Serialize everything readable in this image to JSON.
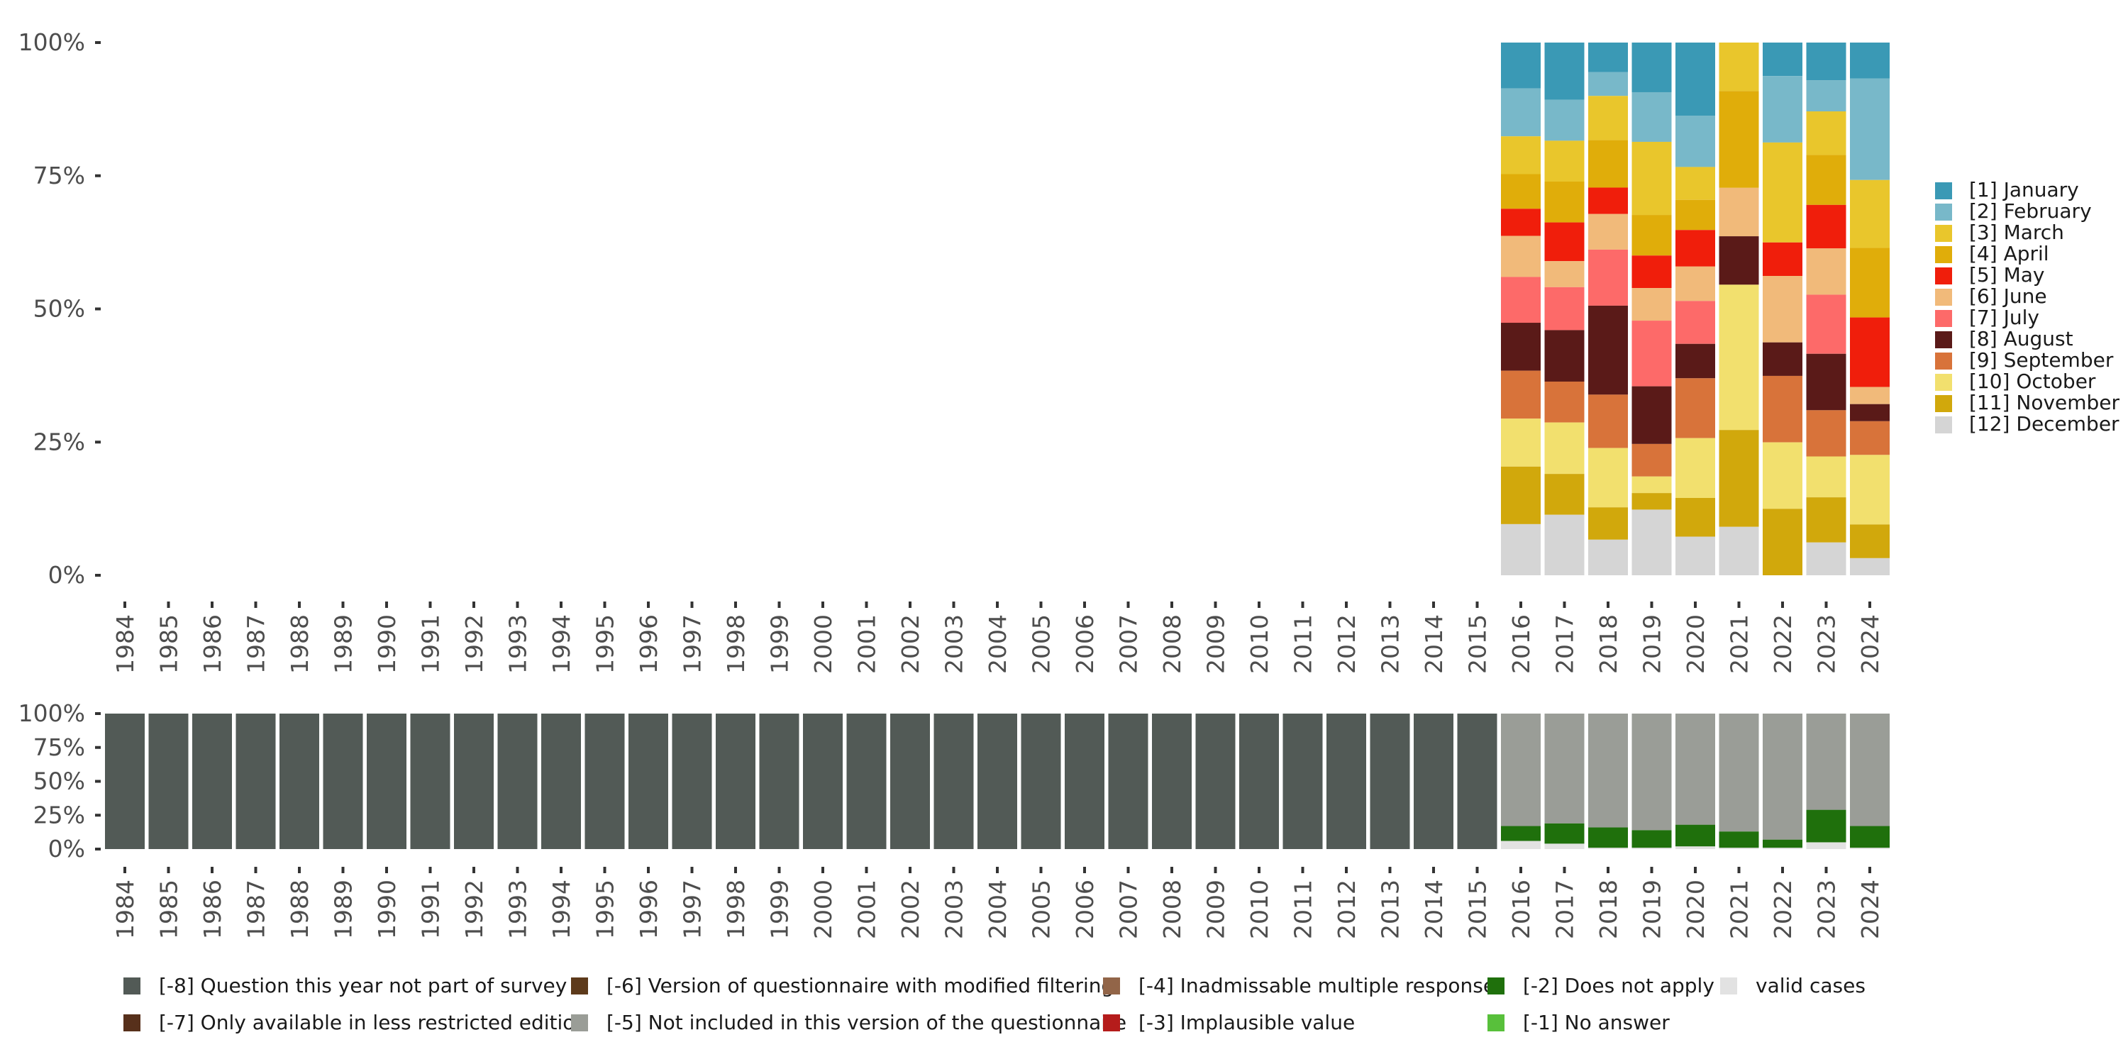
{
  "colors": {
    "months": [
      "#3a99b5",
      "#78b8c9",
      "#e9c62c",
      "#e0ad0a",
      "#f01e0b",
      "#f1ba7a",
      "#fd6a69",
      "#5a1a18",
      "#d8733a",
      "#f2e06e",
      "#d1a80c",
      "#d5d5d5"
    ],
    "missing": {
      "q_not_part": "#525a56",
      "less_restricted": "#57301b",
      "modified_filtering": "#5d3a1b",
      "not_included": "#9a9d97",
      "inadmissable": "#926548",
      "implausible": "#b51c1b",
      "not_apply": "#1f700c",
      "no_answer": "#58c03b",
      "valid": "#e2e2e2"
    }
  },
  "chart_data": [
    {
      "type": "bar",
      "stacked": true,
      "years": [
        "1984",
        "1985",
        "1986",
        "1987",
        "1988",
        "1989",
        "1990",
        "1991",
        "1992",
        "1993",
        "1994",
        "1995",
        "1996",
        "1997",
        "1998",
        "1999",
        "2000",
        "2001",
        "2002",
        "2003",
        "2004",
        "2005",
        "2006",
        "2007",
        "2008",
        "2009",
        "2010",
        "2011",
        "2012",
        "2013",
        "2014",
        "2015",
        "2016",
        "2017",
        "2018",
        "2019",
        "2020",
        "2021",
        "2022",
        "2023",
        "2024"
      ],
      "ylim": [
        0,
        100
      ],
      "yticks": [
        "0%",
        "25%",
        "50%",
        "75%",
        "100%"
      ],
      "legend_position": "right",
      "series": [
        {
          "name": "[1] January",
          "values": {
            "2016": 8.6,
            "2017": 10.8,
            "2018": 5.5,
            "2019": 9.3,
            "2020": 13.8,
            "2021": 0,
            "2022": 6.3,
            "2023": 7.0,
            "2024": 6.7
          }
        },
        {
          "name": "[2] February",
          "values": {
            "2016": 9.0,
            "2017": 7.7,
            "2018": 4.4,
            "2019": 9.3,
            "2020": 9.7,
            "2021": 0,
            "2022": 12.5,
            "2023": 5.8,
            "2024": 19.0
          }
        },
        {
          "name": "[3] March",
          "values": {
            "2016": 7.1,
            "2017": 7.7,
            "2018": 8.2,
            "2019": 13.7,
            "2020": 6.2,
            "2021": 9.1,
            "2022": 18.8,
            "2023": 8.1,
            "2024": 12.7
          }
        },
        {
          "name": "[4] April",
          "values": {
            "2016": 6.5,
            "2017": 7.7,
            "2018": 8.8,
            "2019": 7.6,
            "2020": 5.7,
            "2021": 18.2,
            "2022": 0,
            "2023": 9.3,
            "2024": 13.0
          }
        },
        {
          "name": "[5] May",
          "values": {
            "2016": 5.1,
            "2017": 7.3,
            "2018": 4.9,
            "2019": 6.1,
            "2020": 6.9,
            "2021": 0,
            "2022": 6.3,
            "2023": 8.1,
            "2024": 13.0
          }
        },
        {
          "name": "[6] June",
          "values": {
            "2016": 7.7,
            "2017": 4.9,
            "2018": 6.6,
            "2019": 6.1,
            "2020": 6.5,
            "2021": 9.1,
            "2022": 12.5,
            "2023": 8.6,
            "2024": 3.2
          }
        },
        {
          "name": "[7] July",
          "values": {
            "2016": 8.6,
            "2017": 8.1,
            "2018": 10.4,
            "2019": 12.3,
            "2020": 8.1,
            "2021": 0,
            "2022": 0,
            "2023": 11.0,
            "2024": 0
          }
        },
        {
          "name": "[8] August",
          "values": {
            "2016": 9.0,
            "2017": 9.7,
            "2018": 16.5,
            "2019": 10.8,
            "2020": 6.5,
            "2021": 9.1,
            "2022": 6.3,
            "2023": 10.5,
            "2024": 3.2
          }
        },
        {
          "name": "[9] September",
          "values": {
            "2016": 9.0,
            "2017": 7.7,
            "2018": 9.9,
            "2019": 6.1,
            "2020": 11.3,
            "2021": 0,
            "2022": 12.5,
            "2023": 8.6,
            "2024": 6.3
          }
        },
        {
          "name": "[10] October",
          "values": {
            "2016": 9.0,
            "2017": 9.7,
            "2018": 11.0,
            "2019": 3.1,
            "2020": 11.3,
            "2021": 27.3,
            "2022": 12.5,
            "2023": 7.6,
            "2024": 13.0
          }
        },
        {
          "name": "[11] November",
          "values": {
            "2016": 10.8,
            "2017": 7.7,
            "2018": 6.0,
            "2019": 3.1,
            "2020": 7.3,
            "2021": 18.2,
            "2022": 12.5,
            "2023": 8.4,
            "2024": 6.3
          }
        },
        {
          "name": "[12] December",
          "values": {
            "2016": 9.6,
            "2017": 11.4,
            "2018": 6.6,
            "2019": 12.3,
            "2020": 7.3,
            "2021": 9.1,
            "2022": 0,
            "2023": 6.1,
            "2024": 3.2
          }
        }
      ]
    },
    {
      "type": "bar",
      "stacked": true,
      "years": [
        "1984",
        "1985",
        "1986",
        "1987",
        "1988",
        "1989",
        "1990",
        "1991",
        "1992",
        "1993",
        "1994",
        "1995",
        "1996",
        "1997",
        "1998",
        "1999",
        "2000",
        "2001",
        "2002",
        "2003",
        "2004",
        "2005",
        "2006",
        "2007",
        "2008",
        "2009",
        "2010",
        "2011",
        "2012",
        "2013",
        "2014",
        "2015",
        "2016",
        "2017",
        "2018",
        "2019",
        "2020",
        "2021",
        "2022",
        "2023",
        "2024"
      ],
      "ylim": [
        0,
        100
      ],
      "yticks": [
        "0%",
        "25%",
        "50%",
        "75%",
        "100%"
      ],
      "legend_position": "bottom",
      "series": [
        {
          "key": "valid",
          "name": "valid cases",
          "values": {
            "2016": 6,
            "2017": 4,
            "2018": 1,
            "2019": 1,
            "2020": 2,
            "2021": 1,
            "2022": 1,
            "2023": 5,
            "2024": 1
          }
        },
        {
          "key": "not_apply",
          "name": "[-2] Does not apply",
          "values": {
            "2016": 11,
            "2017": 15,
            "2018": 15,
            "2019": 13,
            "2020": 16,
            "2021": 12,
            "2022": 6,
            "2023": 24,
            "2024": 16
          }
        },
        {
          "key": "not_included",
          "name": "[-5] Not included in this version of the questionnaire",
          "values": {
            "2016": 83,
            "2017": 81,
            "2018": 84,
            "2019": 86,
            "2020": 82,
            "2021": 87,
            "2022": 93,
            "2023": 71,
            "2024": 83
          }
        },
        {
          "key": "q_not_part",
          "name": "[-8] Question this year not part of survey",
          "values": {
            "1984": 100,
            "1985": 100,
            "1986": 100,
            "1987": 100,
            "1988": 100,
            "1989": 100,
            "1990": 100,
            "1991": 100,
            "1992": 100,
            "1993": 100,
            "1994": 100,
            "1995": 100,
            "1996": 100,
            "1997": 100,
            "1998": 100,
            "1999": 100,
            "2000": 100,
            "2001": 100,
            "2002": 100,
            "2003": 100,
            "2004": 100,
            "2005": 100,
            "2006": 100,
            "2007": 100,
            "2008": 100,
            "2009": 100,
            "2010": 100,
            "2011": 100,
            "2012": 100,
            "2013": 100,
            "2014": 100,
            "2015": 100
          }
        }
      ],
      "legend": [
        {
          "key": "q_not_part",
          "label": "[-8] Question this year not part of survey"
        },
        {
          "key": "less_restricted",
          "label": "[-7] Only available in less restricted edition"
        },
        {
          "key": "modified_filtering",
          "label": "[-6] Version of questionnaire with modified filtering"
        },
        {
          "key": "not_included",
          "label": "[-5] Not included in this version of the questionnaire"
        },
        {
          "key": "inadmissable",
          "label": "[-4] Inadmissable multiple response"
        },
        {
          "key": "implausible",
          "label": "[-3] Implausible value"
        },
        {
          "key": "not_apply",
          "label": "[-2] Does not apply"
        },
        {
          "key": "no_answer",
          "label": "[-1] No answer"
        },
        {
          "key": "valid",
          "label": "valid cases"
        }
      ]
    }
  ]
}
